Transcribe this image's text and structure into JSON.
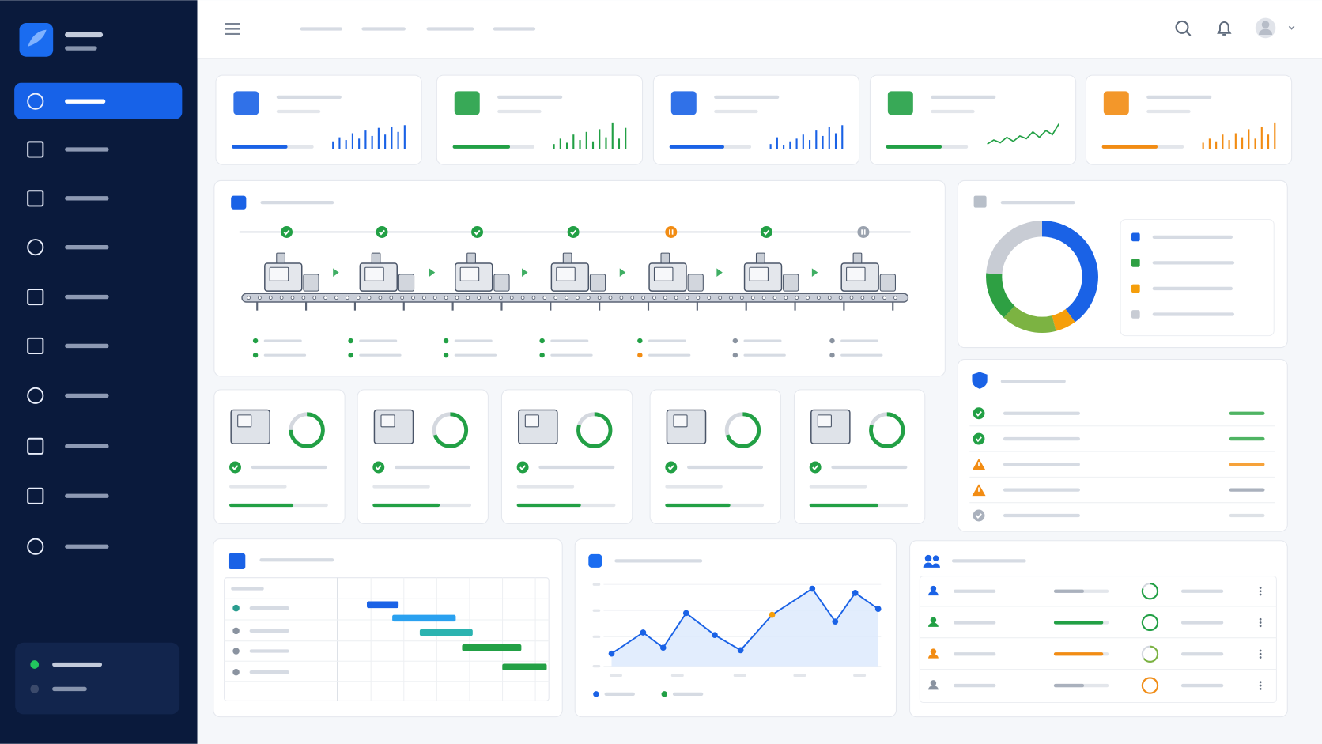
{
  "kpis": [
    {
      "color": "#1a62e6",
      "progress": 68,
      "xlim": [
        0,
        100
      ],
      "spark": {
        "type": "bar",
        "ylim": [
          0,
          100
        ],
        "values": [
          30,
          45,
          35,
          60,
          40,
          70,
          50,
          80,
          55,
          85,
          65,
          90
        ]
      }
    },
    {
      "color": "#22a045",
      "progress": 70,
      "xlim": [
        0,
        100
      ],
      "spark": {
        "type": "bar",
        "ylim": [
          0,
          100
        ],
        "values": [
          20,
          40,
          25,
          55,
          35,
          65,
          30,
          75,
          45,
          100,
          40,
          80
        ]
      }
    },
    {
      "color": "#1a62e6",
      "progress": 67,
      "xlim": [
        0,
        100
      ],
      "spark": {
        "type": "bar",
        "ylim": [
          0,
          100
        ],
        "values": [
          20,
          45,
          15,
          30,
          40,
          55,
          35,
          70,
          50,
          85,
          60,
          90
        ]
      }
    },
    {
      "color": "#22a045",
      "progress": 68,
      "xlim": [
        0,
        100
      ],
      "spark": {
        "type": "line",
        "ylim": [
          0,
          100
        ],
        "values": [
          20,
          35,
          25,
          45,
          30,
          50,
          40,
          65,
          45,
          70,
          55,
          95
        ]
      }
    },
    {
      "color": "#f28c13",
      "progress": 68,
      "xlim": [
        0,
        100
      ],
      "spark": {
        "type": "bar",
        "ylim": [
          0,
          100
        ],
        "values": [
          25,
          40,
          30,
          55,
          35,
          60,
          45,
          75,
          40,
          85,
          55,
          100
        ]
      }
    }
  ],
  "donut": {
    "type": "pie",
    "values": [
      40,
      6,
      16,
      14,
      24
    ],
    "colors": [
      "#1a62e6",
      "#f59e0b",
      "#7cb342",
      "#2ea043",
      "#c8ccd4"
    ]
  },
  "machines": {
    "xlim": [
      0,
      100
    ],
    "rings": [
      75,
      70,
      80,
      70,
      80
    ],
    "progress": [
      65,
      68,
      65,
      66,
      70
    ]
  },
  "gantt": {
    "xlim": [
      0,
      100
    ],
    "tasks": [
      {
        "start": 14,
        "end": 29,
        "color": "#1a62e6"
      },
      {
        "start": 26,
        "end": 56,
        "color": "#2aa1f0"
      },
      {
        "start": 39,
        "end": 64,
        "color": "#2bb3b0"
      },
      {
        "start": 59,
        "end": 87,
        "color": "#22a045"
      },
      {
        "start": 78,
        "end": 99,
        "color": "#22a045"
      }
    ]
  },
  "line_chart": {
    "type": "line",
    "xlim": [
      0,
      100
    ],
    "ylim": [
      0,
      100
    ],
    "color": "#1a62e6",
    "highlight": 6,
    "highlight_color": "#f59e0b",
    "x": [
      6,
      17,
      24,
      32,
      42,
      51,
      62,
      76,
      84,
      91,
      99
    ],
    "values": [
      15,
      40,
      22,
      63,
      37,
      19,
      61,
      92,
      53,
      87,
      68
    ]
  },
  "team": {
    "xlim": [
      0,
      100
    ],
    "progress": [
      55,
      90,
      90,
      55
    ],
    "colors": [
      "#aab1bd",
      "#22a045",
      "#f28c13",
      "#aab1bd"
    ],
    "rings": [
      80,
      100,
      65,
      100
    ],
    "ring_colors": [
      "#22a045",
      "#22a045",
      "#7cb342",
      "#f28c13"
    ]
  }
}
